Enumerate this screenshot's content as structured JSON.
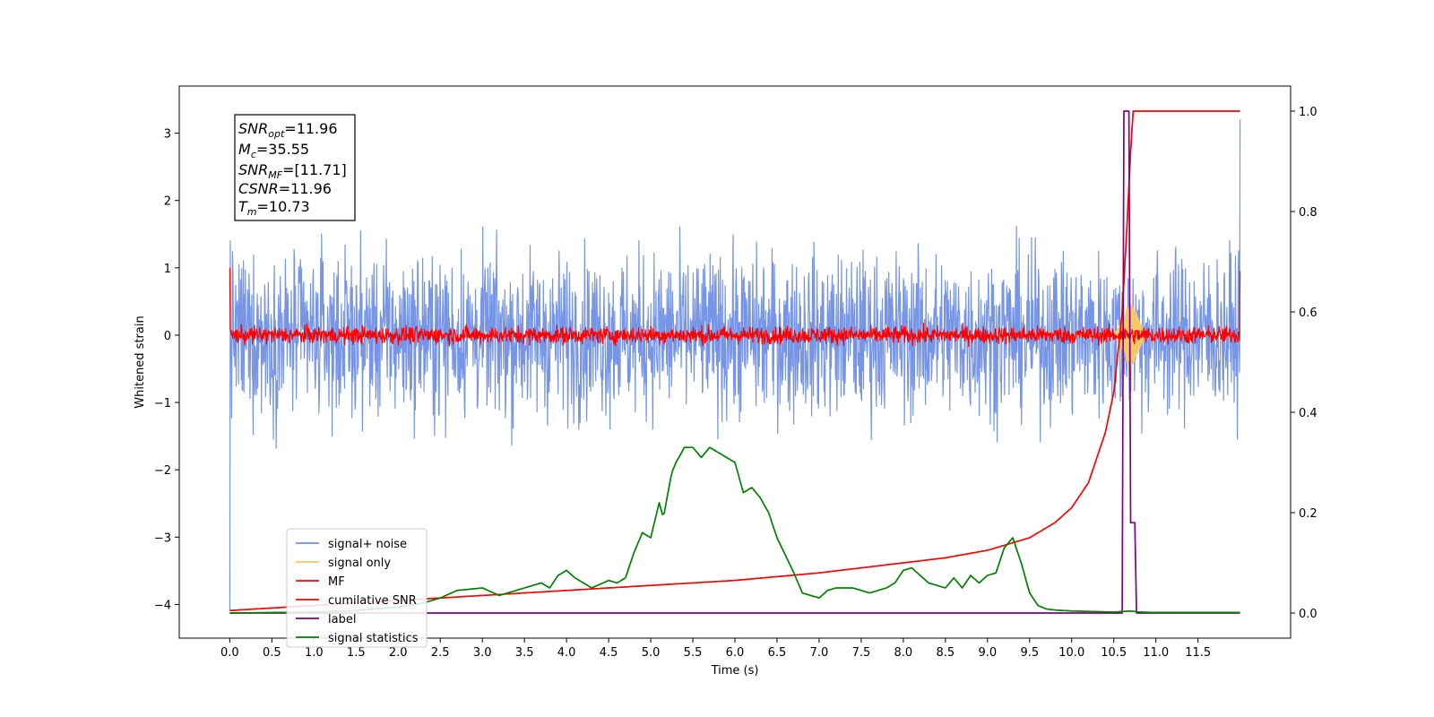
{
  "chart_data": {
    "type": "line",
    "title": "",
    "xlabel": "Time (s)",
    "ylabel": "Whitened strain",
    "xlim": [
      -0.6,
      12.6
    ],
    "ylim": [
      -4.5,
      3.7
    ],
    "y2lim": [
      -0.05,
      1.05
    ],
    "x_ticks": [
      "0.0",
      "0.5",
      "1.0",
      "1.5",
      "2.0",
      "2.5",
      "3.0",
      "3.5",
      "4.0",
      "4.5",
      "5.0",
      "5.5",
      "6.0",
      "6.5",
      "7.0",
      "7.5",
      "8.0",
      "8.5",
      "9.0",
      "9.5",
      "10.0",
      "10.5",
      "11.0",
      "11.5"
    ],
    "y_ticks": [
      "3",
      "2",
      "1",
      "0",
      "−1",
      "−2",
      "−3",
      "−4"
    ],
    "y2_ticks": [
      "1.0",
      "0.8",
      "0.6",
      "0.4",
      "0.2",
      "0.0"
    ],
    "grid": false,
    "legend_position": "lower-left",
    "annotation": {
      "snr_opt": {
        "sym": "SNR",
        "sub": "opt",
        "value": "=11.96"
      },
      "mc": {
        "sym": "M",
        "sub": "c",
        "value": "=35.55"
      },
      "snr_mf": {
        "sym": "SNR",
        "sub": "MF",
        "value": "=[11.71]"
      },
      "csnr": {
        "sym": "CSNR",
        "sub": "",
        "value": "=11.96"
      },
      "tm": {
        "sym": "T",
        "sub": "m",
        "value": "=10.73"
      }
    },
    "series": [
      {
        "name": "signal+ noise",
        "color": "#6f8fe6",
        "axis": "left",
        "kind": "noise",
        "amplitude": 0.85,
        "x_range": [
          0,
          12
        ]
      },
      {
        "name": "signal only",
        "color": "#f5c86a",
        "axis": "left",
        "kind": "chirp",
        "peak_time": 10.7
      },
      {
        "name": "MF",
        "color": "#ff0000",
        "axis": "left",
        "kind": "noise",
        "amplitude": 0.09,
        "x_range": [
          0,
          12
        ]
      },
      {
        "name": "cumilative SNR",
        "color": "#ff0000",
        "axis": "right",
        "x": [
          0,
          1,
          2,
          3,
          4,
          5,
          6,
          7,
          8,
          8.5,
          9,
          9.5,
          9.8,
          10,
          10.2,
          10.4,
          10.5,
          10.6,
          10.65,
          10.7,
          10.73,
          10.75,
          12
        ],
        "y": [
          0.005,
          0.015,
          0.025,
          0.035,
          0.045,
          0.055,
          0.065,
          0.08,
          0.1,
          0.11,
          0.125,
          0.15,
          0.18,
          0.21,
          0.26,
          0.36,
          0.44,
          0.6,
          0.75,
          0.92,
          1.0,
          1.0,
          1.0
        ]
      },
      {
        "name": "label",
        "color": "#800080",
        "axis": "right",
        "x": [
          0,
          10.6,
          10.62,
          10.68,
          10.7,
          10.75,
          10.77,
          12
        ],
        "y": [
          0,
          0,
          1,
          1,
          0.18,
          0.18,
          0,
          0
        ]
      },
      {
        "name": "signal statistics",
        "color": "#008000",
        "axis": "right",
        "x": [
          0,
          1,
          1.5,
          2,
          2.3,
          2.5,
          2.7,
          3.0,
          3.2,
          3.5,
          3.7,
          3.8,
          3.9,
          4.0,
          4.1,
          4.3,
          4.5,
          4.6,
          4.7,
          4.8,
          4.9,
          5.0,
          5.1,
          5.15,
          5.25,
          5.3,
          5.4,
          5.5,
          5.6,
          5.7,
          5.8,
          5.9,
          6.0,
          6.1,
          6.2,
          6.3,
          6.4,
          6.5,
          6.7,
          6.8,
          6.9,
          7.0,
          7.1,
          7.2,
          7.4,
          7.5,
          7.6,
          7.8,
          7.9,
          8.0,
          8.1,
          8.3,
          8.5,
          8.6,
          8.7,
          8.8,
          8.9,
          9.0,
          9.1,
          9.2,
          9.3,
          9.4,
          9.5,
          9.6,
          9.7,
          9.8,
          10.0,
          10.5,
          10.7,
          10.8,
          11.0,
          11.5,
          12.0
        ],
        "y": [
          0.0,
          0.002,
          0.005,
          0.012,
          0.02,
          0.03,
          0.045,
          0.05,
          0.035,
          0.05,
          0.06,
          0.05,
          0.075,
          0.085,
          0.07,
          0.05,
          0.065,
          0.06,
          0.07,
          0.12,
          0.16,
          0.15,
          0.22,
          0.19,
          0.28,
          0.3,
          0.33,
          0.33,
          0.31,
          0.33,
          0.32,
          0.31,
          0.3,
          0.24,
          0.25,
          0.23,
          0.2,
          0.15,
          0.08,
          0.04,
          0.035,
          0.03,
          0.045,
          0.05,
          0.05,
          0.045,
          0.04,
          0.05,
          0.06,
          0.085,
          0.09,
          0.06,
          0.05,
          0.07,
          0.05,
          0.075,
          0.06,
          0.075,
          0.08,
          0.13,
          0.15,
          0.1,
          0.04,
          0.015,
          0.008,
          0.006,
          0.004,
          0.002,
          0.004,
          0.002,
          0.001,
          0.001,
          0.001
        ]
      }
    ]
  }
}
